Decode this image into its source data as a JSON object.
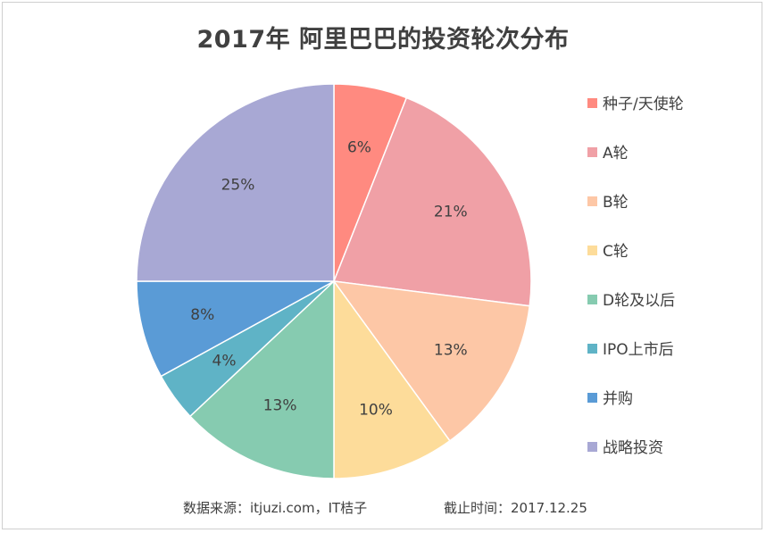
{
  "chart_data": {
    "type": "pie",
    "title": "2017年 阿里巴巴的投资轮次分布",
    "categories": [
      "种子/天使轮",
      "A轮",
      "B轮",
      "C轮",
      "D轮及以后",
      "IPO上市后",
      "并购",
      "战略投资"
    ],
    "values": [
      6,
      21,
      13,
      10,
      13,
      4,
      8,
      25
    ],
    "labels": [
      "6%",
      "21%",
      "13%",
      "10%",
      "13%",
      "4%",
      "8%",
      "25%"
    ],
    "colors": [
      "#FF8A80",
      "#F0A0A6",
      "#FDC7A6",
      "#FDDC9A",
      "#86CBB0",
      "#5FB3C6",
      "#5A9BD6",
      "#A8A8D4"
    ],
    "legend_position": "right",
    "source": "数据来源：itjuzi.com，IT桔子",
    "cutoff": "截止时间：2017.12.25"
  }
}
